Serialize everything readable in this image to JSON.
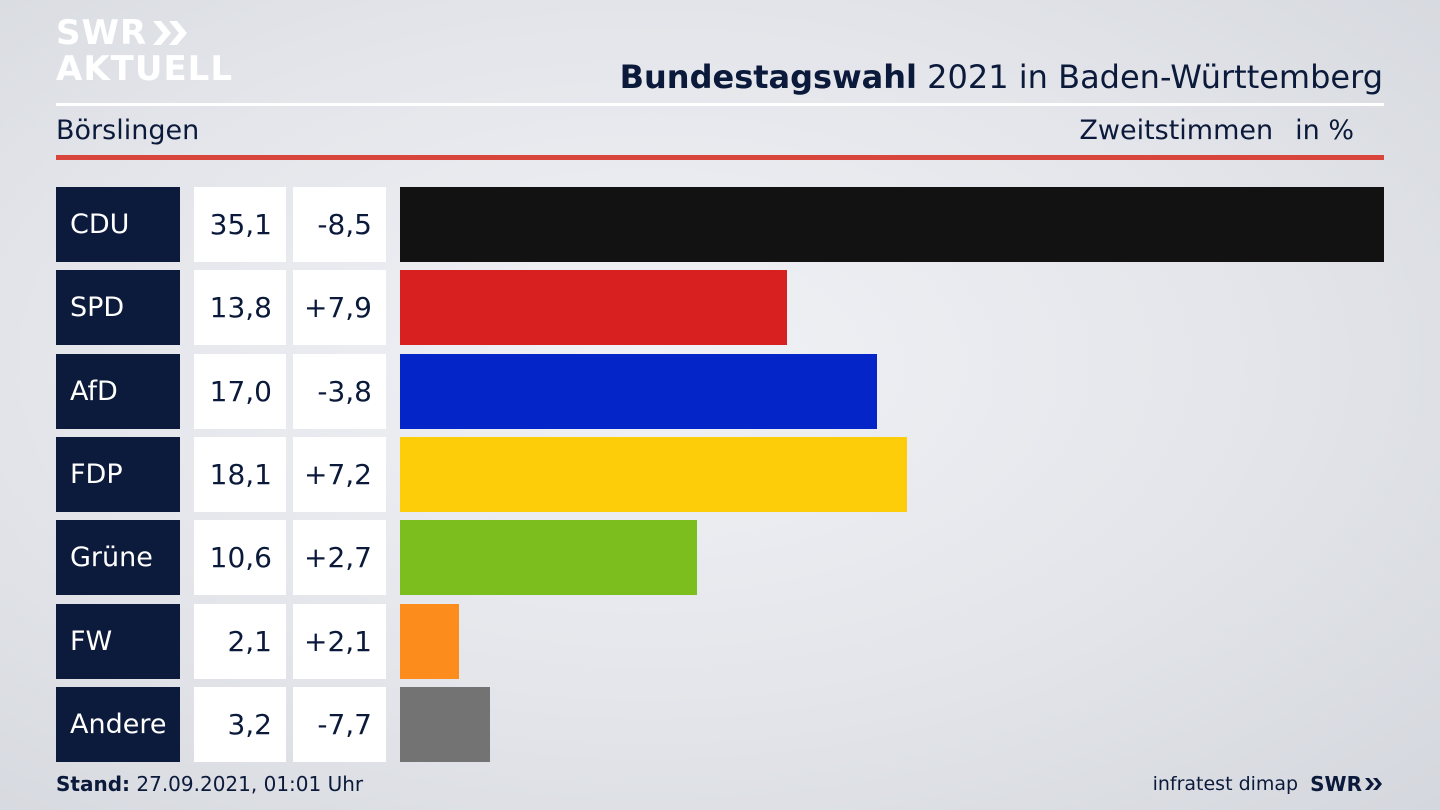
{
  "logo": {
    "line1": "SWR",
    "line2": "AKTUELL"
  },
  "header": {
    "title_bold": "Bundestagswahl",
    "title_rest": " 2021 in Baden-Württemberg",
    "region": "Börslingen",
    "measure": "Zweitstimmen",
    "unit": "in %"
  },
  "chart_data": {
    "type": "bar",
    "orientation": "horizontal",
    "categories": [
      "CDU",
      "SPD",
      "AfD",
      "FDP",
      "Grüne",
      "FW",
      "Andere"
    ],
    "values": [
      35.1,
      13.8,
      17.0,
      18.1,
      10.6,
      2.1,
      3.2
    ],
    "value_labels": [
      "35,1",
      "13,8",
      "17,0",
      "18,1",
      "10,6",
      "2,1",
      "3,2"
    ],
    "diff_labels": [
      "-8,5",
      "+7,9",
      "-3,8",
      "+7,2",
      "+2,7",
      "+2,1",
      "-7,7"
    ],
    "colors": [
      "#121212",
      "#d82020",
      "#0426c8",
      "#fdcd0a",
      "#7bbe1e",
      "#fc8c1c",
      "#737373"
    ],
    "xlim": [
      0,
      35.1
    ]
  },
  "footer": {
    "stand_label": "Stand:",
    "stand_value": " 27.09.2021, 01:01 Uhr",
    "source": "infratest dimap",
    "brand": "SWR"
  }
}
